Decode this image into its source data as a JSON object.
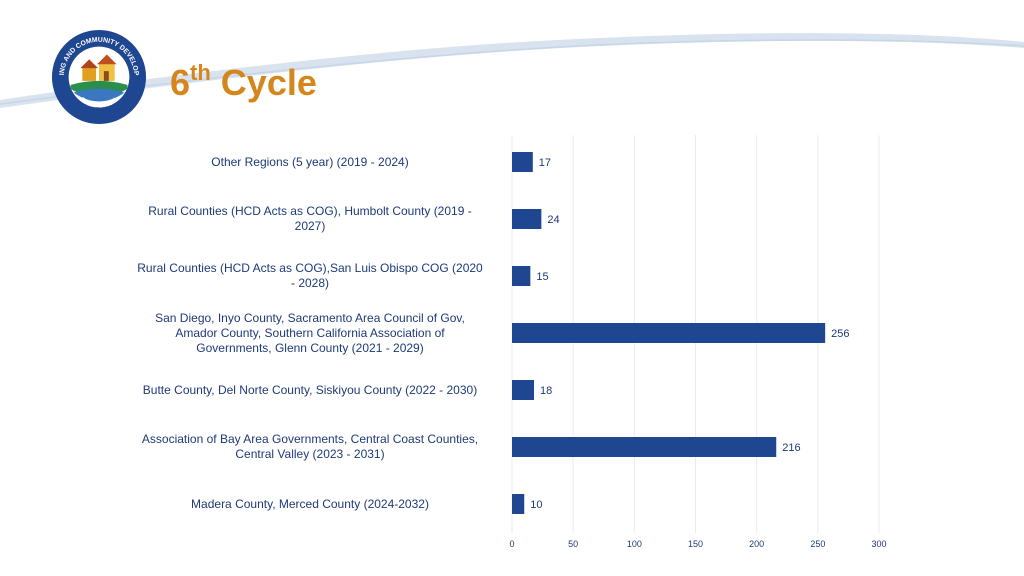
{
  "header": {
    "title_main": "6",
    "title_sup": "th",
    "title_rest": " Cycle",
    "logo_text_top": "HOUSING AND COMMUNITY DEVELOPMENT",
    "logo_text_bottom": "CALIFORNIA"
  },
  "colors": {
    "accent": "#d4861c",
    "bar": "#1f4690",
    "text": "#1e3a78",
    "banner": "#d8e3ef"
  },
  "chart_data": {
    "type": "bar",
    "orientation": "horizontal",
    "title": "6th Cycle",
    "categories": [
      [
        "Other Regions (5 year) (2019 - 2024)"
      ],
      [
        "Rural Counties (HCD Acts as COG), Humbolt County (2019 -",
        "2027)"
      ],
      [
        "Rural Counties (HCD Acts as COG),San Luis Obispo COG (2020",
        "- 2028)"
      ],
      [
        "San Diego, Inyo County, Sacramento Area Council of Gov,",
        "Amador County, Southern California Association of",
        "Governments, Glenn County (2021 - 2029)"
      ],
      [
        "Butte County, Del Norte County, Siskiyou County (2022 - 2030)"
      ],
      [
        "Association of Bay Area Governments, Central Coast Counties,",
        "Central Valley (2023 - 2031)"
      ],
      [
        "Madera County, Merced County (2024-2032)"
      ]
    ],
    "values": [
      17,
      24,
      15,
      256,
      18,
      216,
      10
    ],
    "xlim": [
      0,
      300
    ],
    "xticks": [
      0,
      50,
      100,
      150,
      200,
      250,
      300
    ],
    "grid": true,
    "xlabel": "",
    "ylabel": ""
  }
}
